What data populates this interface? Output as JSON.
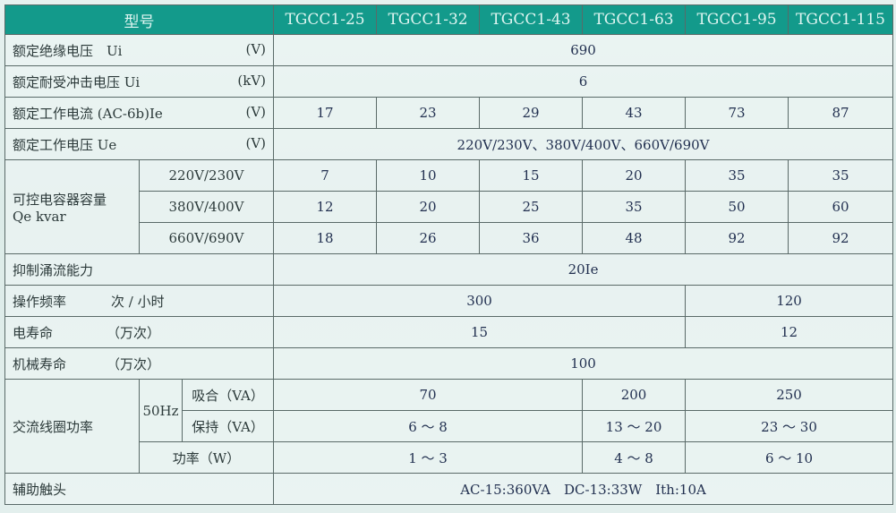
{
  "header": {
    "label": "型号",
    "models": [
      "TGCC1-25",
      "TGCC1-32",
      "TGCC1-43",
      "TGCC1-63",
      "TGCC1-95",
      "TGCC1-115"
    ]
  },
  "rows": {
    "ui": {
      "label": "额定绝缘电压　Ui",
      "unit": "(V)",
      "value": "690"
    },
    "uimp": {
      "label": "额定耐受冲击电压 Ui",
      "unit": "(kV)",
      "value": "6"
    },
    "ie": {
      "label": "额定工作电流 (AC-6b)Ie",
      "unit": "(V)",
      "values": [
        "17",
        "23",
        "29",
        "43",
        "73",
        "87"
      ]
    },
    "ue": {
      "label": "额定工作电压 Ue",
      "unit": "(V)",
      "value": "220V/230V、380V/400V、660V/690V"
    },
    "qe": {
      "label": "可控电容器容量",
      "label2": "Qe kvar",
      "sub": [
        {
          "label": "220V/230V",
          "values": [
            "7",
            "10",
            "15",
            "20",
            "35",
            "35"
          ]
        },
        {
          "label": "380V/400V",
          "values": [
            "12",
            "20",
            "25",
            "35",
            "50",
            "60"
          ]
        },
        {
          "label": "660V/690V",
          "values": [
            "18",
            "26",
            "36",
            "48",
            "92",
            "92"
          ]
        }
      ]
    },
    "inrush": {
      "label": "抑制涌流能力",
      "value": "20Ie"
    },
    "freq": {
      "label": "操作频率",
      "unit": "次 / 小时",
      "values": [
        "300",
        "120"
      ]
    },
    "elife": {
      "label": "电寿命",
      "unit": "（万次）",
      "values": [
        "15",
        "12"
      ]
    },
    "mlife": {
      "label": "机械寿命",
      "unit": "（万次）",
      "value": "100"
    },
    "coil": {
      "label": "交流线圈功率",
      "freq": "50Hz",
      "pull": {
        "label": "吸合（VA）",
        "values": [
          "70",
          "200",
          "250"
        ]
      },
      "hold": {
        "label": "保持（VA）",
        "values": [
          "6 ～ 8",
          "13 ～ 20",
          "23 ～ 30"
        ]
      },
      "power": {
        "label": "功率（W）",
        "values": [
          "1 ～ 3",
          "4 ～ 8",
          "6 ～ 10"
        ]
      }
    },
    "aux": {
      "label": "辅助触头",
      "value": "AC-15:360VA　DC-13:33W　Ith:10A"
    }
  }
}
